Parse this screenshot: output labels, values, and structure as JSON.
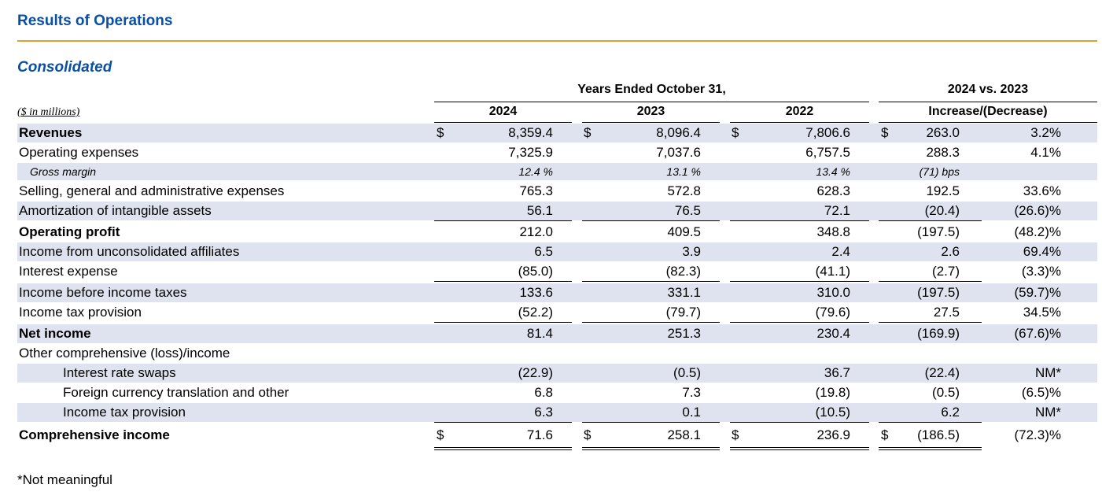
{
  "title": "Results of Operations",
  "subtitle": "Consolidated",
  "header": {
    "period_label": "Years Ended October 31,",
    "comparison_label": "2024 vs. 2023",
    "units": "($ in millions)",
    "columns": [
      "2024",
      "2023",
      "2022",
      "Increase/(Decrease)"
    ]
  },
  "rows": [
    {
      "label": "Revenues",
      "values": [
        "8,359.4",
        "8,096.4",
        "7,806.6",
        "263.0",
        "3.2%"
      ]
    },
    {
      "label": "Operating expenses",
      "values": [
        "7,325.9",
        "7,037.6",
        "6,757.5",
        "288.3",
        "4.1%"
      ]
    },
    {
      "label": "Gross margin",
      "values": [
        "12.4 %",
        "13.1 %",
        "13.4 %",
        "(71) bps",
        ""
      ]
    },
    {
      "label": "Selling, general and administrative expenses",
      "values": [
        "765.3",
        "572.8",
        "628.3",
        "192.5",
        "33.6%"
      ]
    },
    {
      "label": "Amortization of intangible assets",
      "values": [
        "56.1",
        "76.5",
        "72.1",
        "(20.4)",
        "(26.6)%"
      ]
    },
    {
      "label": "Operating profit",
      "values": [
        "212.0",
        "409.5",
        "348.8",
        "(197.5)",
        "(48.2)%"
      ]
    },
    {
      "label": "Income from unconsolidated affiliates",
      "values": [
        "6.5",
        "3.9",
        "2.4",
        "2.6",
        "69.4%"
      ]
    },
    {
      "label": "Interest expense",
      "values": [
        "(85.0)",
        "(82.3)",
        "(41.1)",
        "(2.7)",
        "(3.3)%"
      ]
    },
    {
      "label": "Income before income taxes",
      "values": [
        "133.6",
        "331.1",
        "310.0",
        "(197.5)",
        "(59.7)%"
      ]
    },
    {
      "label": "Income tax provision",
      "values": [
        "(52.2)",
        "(79.7)",
        "(79.6)",
        "27.5",
        "34.5%"
      ]
    },
    {
      "label": "Net income",
      "values": [
        "81.4",
        "251.3",
        "230.4",
        "(169.9)",
        "(67.6)%"
      ]
    },
    {
      "label": "Other comprehensive (loss)/income",
      "values": [
        "",
        "",
        "",
        "",
        ""
      ]
    },
    {
      "label": "Interest rate swaps",
      "values": [
        "(22.9)",
        "(0.5)",
        "36.7",
        "(22.4)",
        "NM*"
      ]
    },
    {
      "label": "Foreign currency translation and other",
      "values": [
        "6.8",
        "7.3",
        "(19.8)",
        "(0.5)",
        "(6.5)%"
      ]
    },
    {
      "label": "Income tax provision",
      "values": [
        "6.3",
        "0.1",
        "(10.5)",
        "6.2",
        "NM*"
      ]
    },
    {
      "label": "Comprehensive income",
      "values": [
        "71.6",
        "258.1",
        "236.9",
        "(186.5)",
        "(72.3)%"
      ]
    }
  ],
  "currency_symbol": "$",
  "footnote": "*Not meaningful"
}
